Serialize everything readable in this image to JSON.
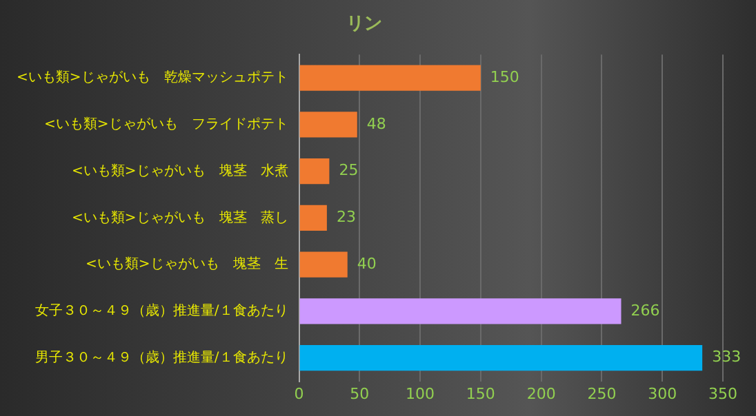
{
  "chart_data": {
    "type": "bar",
    "orientation": "horizontal",
    "title": "リン",
    "categories": [
      "<いも類>じゃがいも　乾燥マッシュポテト",
      "<いも類>じゃがいも　フライドポテト",
      "<いも類>じゃがいも　塊茎　水煮",
      "<いも類>じゃがいも　塊茎　蒸し",
      "<いも類>じゃがいも　塊茎　生",
      "女子３０～４９（歳）推進量/１食あたり",
      "男子３０～４９（歳）推進量/１食あたり"
    ],
    "values": [
      150,
      48,
      25,
      23,
      40,
      266,
      333
    ],
    "colors": [
      "#f07a30",
      "#f07a30",
      "#f07a30",
      "#f07a30",
      "#f07a30",
      "#cc99ff",
      "#00b0f0"
    ],
    "xlim": [
      0,
      350
    ],
    "xticks": [
      0,
      50,
      100,
      150,
      200,
      250,
      300,
      350
    ],
    "grid": "x",
    "legend": false,
    "data_labels": true
  }
}
